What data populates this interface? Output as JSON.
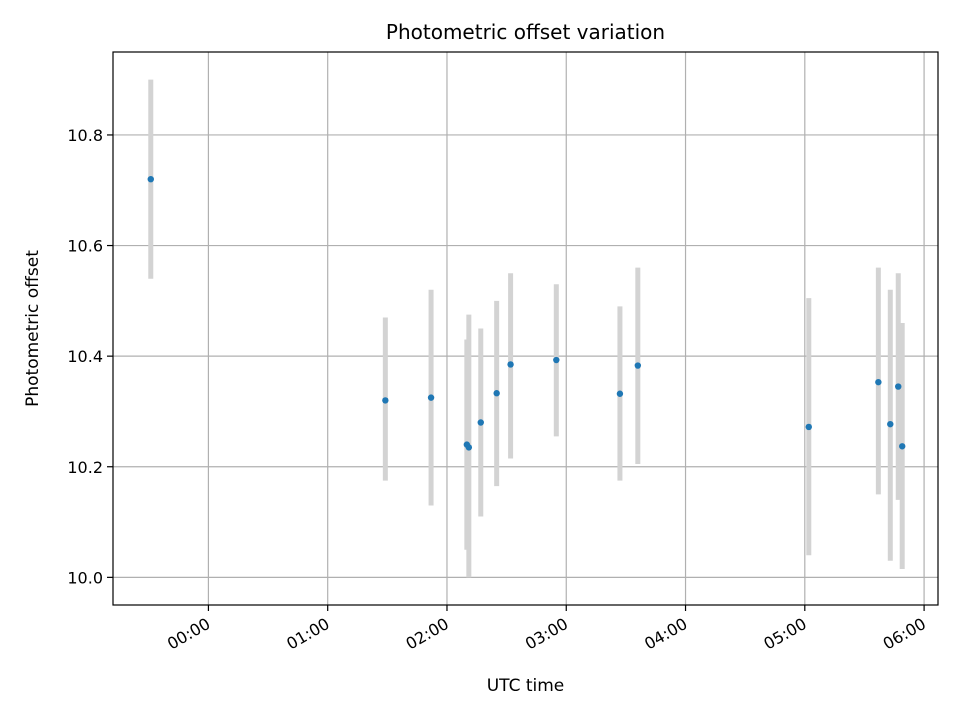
{
  "chart_data": {
    "type": "scatter",
    "title": "Photometric offset variation",
    "xlabel": "UTC time",
    "ylabel": "Photometric offset",
    "x_unit": "hours (UTC)",
    "xlim": [
      "-00:48",
      "06:07"
    ],
    "ylim": [
      9.95,
      10.95
    ],
    "x_ticks": [
      {
        "label": "00:00",
        "value": "00:00"
      },
      {
        "label": "01:00",
        "value": "01:00"
      },
      {
        "label": "02:00",
        "value": "02:00"
      },
      {
        "label": "03:00",
        "value": "03:00"
      },
      {
        "label": "04:00",
        "value": "04:00"
      },
      {
        "label": "05:00",
        "value": "05:00"
      },
      {
        "label": "06:00",
        "value": "06:00"
      }
    ],
    "y_ticks": [
      {
        "label": "10.0",
        "value": 10.0
      },
      {
        "label": "10.2",
        "value": 10.2
      },
      {
        "label": "10.4",
        "value": 10.4
      },
      {
        "label": "10.6",
        "value": 10.6
      },
      {
        "label": "10.8",
        "value": 10.8
      }
    ],
    "grid": true,
    "points": [
      {
        "x": "-00:29",
        "y": 10.72,
        "ylow": 10.54,
        "yhigh": 10.9
      },
      {
        "x": "01:29",
        "y": 10.32,
        "ylow": 10.175,
        "yhigh": 10.47
      },
      {
        "x": "01:52",
        "y": 10.325,
        "ylow": 10.13,
        "yhigh": 10.52
      },
      {
        "x": "02:10",
        "y": 10.24,
        "ylow": 10.05,
        "yhigh": 10.43
      },
      {
        "x": "02:11",
        "y": 10.235,
        "ylow": 10.0,
        "yhigh": 10.475
      },
      {
        "x": "02:17",
        "y": 10.28,
        "ylow": 10.11,
        "yhigh": 10.45
      },
      {
        "x": "02:25",
        "y": 10.333,
        "ylow": 10.165,
        "yhigh": 10.5
      },
      {
        "x": "02:32",
        "y": 10.385,
        "ylow": 10.215,
        "yhigh": 10.55
      },
      {
        "x": "02:55",
        "y": 10.393,
        "ylow": 10.255,
        "yhigh": 10.53
      },
      {
        "x": "03:27",
        "y": 10.332,
        "ylow": 10.175,
        "yhigh": 10.49
      },
      {
        "x": "03:36",
        "y": 10.383,
        "ylow": 10.205,
        "yhigh": 10.56
      },
      {
        "x": "05:02",
        "y": 10.272,
        "ylow": 10.04,
        "yhigh": 10.505
      },
      {
        "x": "05:37",
        "y": 10.353,
        "ylow": 10.15,
        "yhigh": 10.56
      },
      {
        "x": "05:43",
        "y": 10.277,
        "ylow": 10.03,
        "yhigh": 10.52
      },
      {
        "x": "05:47",
        "y": 10.345,
        "ylow": 10.14,
        "yhigh": 10.55
      },
      {
        "x": "05:49",
        "y": 10.237,
        "ylow": 10.015,
        "yhigh": 10.46
      }
    ],
    "marker_color": "#1f77b4",
    "errorbar_color": "#d3d3d3",
    "grid_color": "#b0b0b0"
  }
}
